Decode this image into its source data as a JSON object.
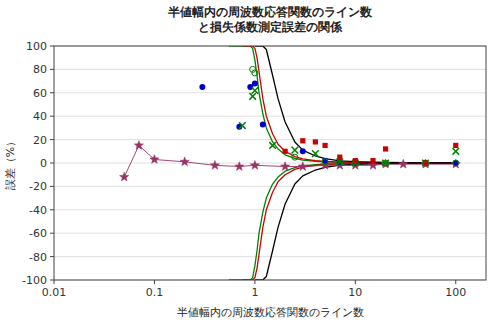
{
  "chart_data": {
    "type": "scatter",
    "title": "半値幅内の周波数応答関数のライン数\nと損失係数測定誤差の関係",
    "x_label": "半値幅内の周波数応答関数のライン数",
    "y_label": "誤差（%）",
    "log": "x",
    "grid": "y",
    "xlim": [
      0.01,
      200
    ],
    "ylim": [
      -100,
      100
    ],
    "xticks": [
      0.01,
      0.1,
      1,
      10,
      100
    ],
    "yticks": [
      -100,
      -80,
      -60,
      -40,
      -20,
      0,
      20,
      40,
      60,
      80,
      100
    ],
    "series": [
      {
        "type": "line",
        "color": "#008000",
        "x": [
          0.55,
          0.6,
          0.65,
          0.7,
          0.75,
          0.8,
          0.85,
          0.9,
          0.95,
          1.0,
          1.05,
          1.1,
          1.2,
          1.3,
          1.5,
          1.7,
          2.0,
          2.5,
          3.0,
          4.0,
          5.0,
          7.0,
          10.0,
          20.0,
          50.0,
          100.0
        ],
        "values": [
          100,
          100,
          100,
          100,
          100,
          100,
          100,
          100,
          98,
          88,
          75,
          60,
          42,
          30,
          18,
          12,
          7,
          4,
          2.5,
          1.5,
          1.0,
          0.6,
          0.35,
          0.15,
          0.06,
          0.03
        ]
      },
      {
        "type": "line",
        "color": "#008000",
        "x": [
          0.55,
          0.6,
          0.65,
          0.7,
          0.75,
          0.8,
          0.85,
          0.9,
          0.95,
          1.0,
          1.05,
          1.1,
          1.2,
          1.3,
          1.5,
          1.7,
          2.0,
          2.5,
          3.0,
          4.0,
          5.0,
          7.0,
          10.0,
          20.0,
          50.0,
          100.0
        ],
        "values": [
          -100,
          -100,
          -100,
          -100,
          -100,
          -100,
          -100,
          -100,
          -98,
          -88,
          -75,
          -60,
          -42,
          -30,
          -18,
          -12,
          -7,
          -4,
          -2.5,
          -1.5,
          -1.0,
          -0.6,
          -0.35,
          -0.15,
          -0.06,
          -0.03
        ]
      },
      {
        "type": "line",
        "color": "#cc0000",
        "x": [
          0.75,
          0.8,
          0.85,
          0.9,
          0.95,
          1.0,
          1.05,
          1.1,
          1.2,
          1.3,
          1.5,
          1.7,
          2.0,
          2.5,
          3.0,
          4.0,
          5.0,
          7.0,
          10.0,
          20.0,
          50.0,
          100.0
        ],
        "values": [
          100,
          100,
          100,
          100,
          100,
          98,
          90,
          78,
          55,
          40,
          25,
          16,
          10,
          5.5,
          3.5,
          2.0,
          1.3,
          0.7,
          0.45,
          0.18,
          0.07,
          0.04
        ]
      },
      {
        "type": "line",
        "color": "#cc0000",
        "x": [
          0.75,
          0.8,
          0.85,
          0.9,
          0.95,
          1.0,
          1.05,
          1.1,
          1.2,
          1.3,
          1.5,
          1.7,
          2.0,
          2.5,
          3.0,
          4.0,
          5.0,
          7.0,
          10.0,
          20.0,
          50.0,
          100.0
        ],
        "values": [
          -100,
          -100,
          -100,
          -100,
          -100,
          -98,
          -90,
          -78,
          -55,
          -40,
          -25,
          -16,
          -10,
          -5.5,
          -3.5,
          -2.0,
          -1.3,
          -0.7,
          -0.45,
          -0.18,
          -0.07,
          -0.04
        ]
      },
      {
        "type": "line",
        "color": "#000000",
        "x": [
          1.0,
          1.1,
          1.2,
          1.3,
          1.5,
          1.7,
          2.0,
          2.5,
          3.0,
          4.0,
          5.0,
          7.0,
          10.0,
          20.0,
          50.0,
          100.0
        ],
        "values": [
          100,
          100,
          100,
          97,
          75,
          55,
          35,
          18,
          11,
          6,
          3.8,
          1.9,
          1.1,
          0.45,
          0.16,
          0.08
        ]
      },
      {
        "type": "line",
        "color": "#000000",
        "x": [
          1.0,
          1.1,
          1.2,
          1.3,
          1.5,
          1.7,
          2.0,
          2.5,
          3.0,
          4.0,
          5.0,
          7.0,
          10.0,
          20.0,
          50.0,
          100.0
        ],
        "values": [
          -100,
          -100,
          -100,
          -97,
          -75,
          -55,
          -35,
          -18,
          -11,
          -6,
          -3.8,
          -1.9,
          -1.1,
          -0.45,
          -0.16,
          -0.08
        ]
      },
      {
        "type": "line",
        "color": "#993366",
        "marker": "star",
        "x": [
          0.05,
          0.07,
          0.1,
          0.2,
          0.4,
          0.7,
          1.0,
          2.0,
          3.0,
          5.0,
          7.0,
          10.0,
          15.0,
          20.0,
          30.0,
          50.0,
          100.0
        ],
        "values": [
          -12,
          15,
          3,
          1,
          -2,
          -3,
          -2,
          -3,
          -3,
          -2,
          -2,
          -2,
          -2,
          -1,
          -1,
          -1,
          -1
        ]
      },
      {
        "type": "scatter",
        "color": "#0000cc",
        "marker": "circle",
        "x": [
          0.3,
          0.7,
          0.9,
          1.0,
          1.2,
          3.0,
          5.0,
          7.0,
          10.0,
          50.0,
          100.0
        ],
        "values": [
          65,
          31,
          65,
          68,
          33,
          10,
          2,
          1,
          0,
          0,
          0
        ]
      },
      {
        "type": "scatter",
        "color": "#008000",
        "marker": "open-circle",
        "x": [
          0.95,
          1.0,
          2.5,
          5.0,
          7.0,
          10.0,
          20.0,
          50.0,
          100.0
        ],
        "values": [
          80,
          77,
          5,
          1,
          0,
          0,
          0,
          0,
          0
        ]
      },
      {
        "type": "scatter",
        "color": "#008000",
        "marker": "x",
        "x": [
          0.75,
          0.95,
          1.0,
          1.5,
          2.5,
          4.0,
          7.0,
          10.0,
          20.0,
          50.0,
          100.0
        ],
        "values": [
          32,
          57,
          62,
          15,
          11,
          8,
          1,
          0,
          0,
          0,
          10
        ]
      },
      {
        "type": "scatter",
        "color": "#cc0000",
        "marker": "square",
        "x": [
          2.0,
          3.0,
          4.0,
          5.0,
          7.0,
          10.0,
          15.0,
          20.0,
          50.0,
          100.0
        ],
        "values": [
          10,
          19,
          18,
          15,
          5,
          2,
          2,
          12,
          0,
          15
        ]
      }
    ]
  }
}
